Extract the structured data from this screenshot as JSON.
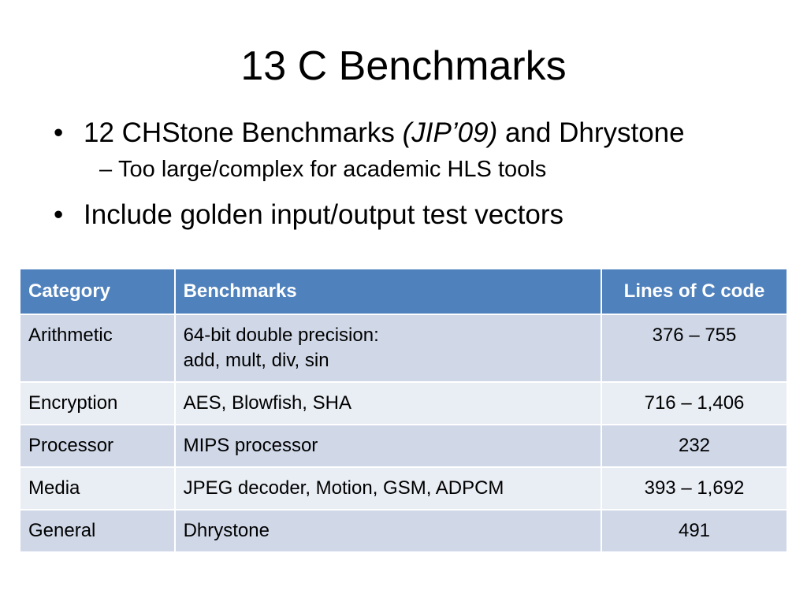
{
  "slide": {
    "title": "13 C Benchmarks",
    "bullets": [
      {
        "marker": "•",
        "text_before": "12 CHStone Benchmarks ",
        "text_italic": "(JIP’09)",
        "text_after": " and Dhrystone",
        "sub": {
          "marker": "–",
          "text": "Too large/complex for academic HLS tools"
        }
      },
      {
        "marker": "•",
        "text": "Include golden input/output test vectors"
      }
    ]
  },
  "table": {
    "headers": [
      "Category",
      "Benchmarks",
      "Lines of C code"
    ],
    "rows": [
      {
        "category": "Arithmetic",
        "benchmarks_line1": "64-bit double precision:",
        "benchmarks_line2": "add, mult, div, sin",
        "lines": "376 – 755"
      },
      {
        "category": "Encryption",
        "benchmarks_line1": "AES, Blowfish, SHA",
        "lines": "716 – 1,406"
      },
      {
        "category": "Processor",
        "benchmarks_line1": "MIPS processor",
        "lines": "232"
      },
      {
        "category": "Media",
        "benchmarks_line1": "JPEG decoder, Motion, GSM, ADPCM",
        "lines": "393 – 1,692"
      },
      {
        "category": "General",
        "benchmarks_line1": "Dhrystone",
        "lines": "491"
      }
    ],
    "colors": {
      "header_bg": "#4f81bd",
      "row_odd": "#d0d8e8",
      "row_even": "#e9edf4"
    }
  }
}
